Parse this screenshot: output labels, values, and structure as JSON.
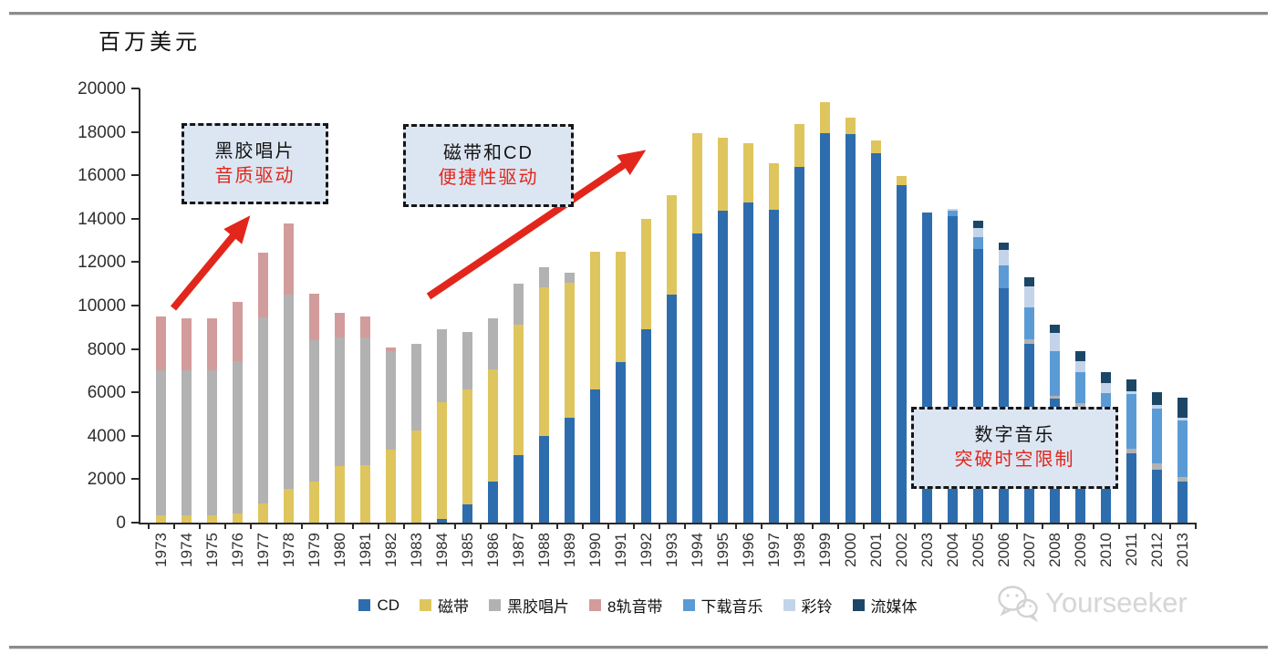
{
  "chart": {
    "unit_label": "百万美元",
    "annotations": [
      {
        "line1": "黑胶唱片",
        "line2": "音质驱动"
      },
      {
        "line1": "磁带和CD",
        "line2": "便捷性驱动"
      },
      {
        "line1": "数字音乐",
        "line2": "突破时空限制"
      }
    ],
    "annotation_bg": "#dce6f2",
    "annotation_accent_color": "#e2261c",
    "arrow_color": "#e2261c",
    "watermark": "Yourseeker"
  },
  "chart_data": {
    "type": "bar",
    "stacked": true,
    "title": "",
    "xlabel": "",
    "ylabel": "百万美元",
    "ylim": [
      0,
      20000
    ],
    "ytick_step": 2000,
    "grid": false,
    "legend_position": "bottom",
    "categories": [
      "1973",
      "1974",
      "1975",
      "1976",
      "1977",
      "1978",
      "1979",
      "1980",
      "1981",
      "1982",
      "1983",
      "1984",
      "1985",
      "1986",
      "1987",
      "1988",
      "1989",
      "1990",
      "1991",
      "1992",
      "1993",
      "1994",
      "1995",
      "1996",
      "1997",
      "1998",
      "1999",
      "2000",
      "2001",
      "2002",
      "2003",
      "2004",
      "2005",
      "2006",
      "2007",
      "2008",
      "2009",
      "2010",
      "2011",
      "2012",
      "2013"
    ],
    "series": [
      {
        "name": "CD",
        "color": "#2e6dad",
        "values": [
          0,
          0,
          0,
          0,
          0,
          0,
          0,
          0,
          0,
          0,
          0,
          150,
          850,
          1900,
          3100,
          4000,
          4850,
          6150,
          7400,
          8900,
          10500,
          13300,
          14350,
          14750,
          14400,
          16400,
          17950,
          17900,
          17000,
          15550,
          14300,
          14100,
          12600,
          10800,
          8250,
          5700,
          5350,
          4600,
          3200,
          2450,
          1890
        ]
      },
      {
        "name": "磁带",
        "color": "#dfc55e",
        "values": [
          350,
          350,
          350,
          400,
          900,
          1550,
          1900,
          2600,
          2650,
          3350,
          4250,
          5400,
          5300,
          5150,
          6000,
          6850,
          6200,
          6350,
          5100,
          5100,
          4600,
          4650,
          3400,
          2750,
          2150,
          1950,
          1400,
          750,
          600,
          400,
          0,
          0,
          0,
          0,
          0,
          0,
          0,
          0,
          0,
          0,
          0
        ]
      },
      {
        "name": "黑胶唱片",
        "color": "#b2b2b2",
        "values": [
          6650,
          6650,
          6650,
          7050,
          8550,
          8950,
          6500,
          5950,
          5900,
          4550,
          4000,
          3350,
          2650,
          2350,
          1900,
          900,
          450,
          0,
          0,
          0,
          0,
          0,
          0,
          0,
          0,
          0,
          0,
          0,
          0,
          0,
          0,
          0,
          0,
          0,
          200,
          150,
          150,
          150,
          220,
          300,
          210
        ]
      },
      {
        "name": "8轨音带",
        "color": "#d39c9c",
        "values": [
          2500,
          2400,
          2400,
          2700,
          3000,
          3300,
          2150,
          1100,
          950,
          150,
          0,
          0,
          0,
          0,
          0,
          0,
          0,
          0,
          0,
          0,
          0,
          0,
          0,
          0,
          0,
          0,
          0,
          0,
          0,
          0,
          0,
          0,
          0,
          0,
          0,
          0,
          0,
          0,
          0,
          0,
          0
        ]
      },
      {
        "name": "下载音乐",
        "color": "#5b9bd5",
        "values": [
          0,
          0,
          0,
          0,
          0,
          0,
          0,
          0,
          0,
          0,
          0,
          0,
          0,
          0,
          0,
          0,
          0,
          0,
          0,
          0,
          0,
          0,
          0,
          0,
          0,
          0,
          0,
          0,
          0,
          0,
          0,
          250,
          560,
          1050,
          1470,
          2050,
          1450,
          1200,
          2500,
          2500,
          2600
        ]
      },
      {
        "name": "彩铃",
        "color": "#c3d4ea",
        "values": [
          0,
          0,
          0,
          0,
          0,
          0,
          0,
          0,
          0,
          0,
          0,
          0,
          0,
          0,
          0,
          0,
          0,
          0,
          0,
          0,
          0,
          0,
          0,
          0,
          0,
          0,
          0,
          0,
          0,
          0,
          0,
          100,
          420,
          700,
          980,
          850,
          470,
          490,
          150,
          160,
          140
        ]
      },
      {
        "name": "流媒体",
        "color": "#1c4666",
        "values": [
          0,
          0,
          0,
          0,
          0,
          0,
          0,
          0,
          0,
          0,
          0,
          0,
          0,
          0,
          0,
          0,
          0,
          0,
          0,
          0,
          0,
          0,
          0,
          0,
          0,
          0,
          0,
          0,
          0,
          0,
          0,
          0,
          320,
          350,
          400,
          350,
          480,
          490,
          530,
          590,
          900
        ]
      }
    ]
  }
}
